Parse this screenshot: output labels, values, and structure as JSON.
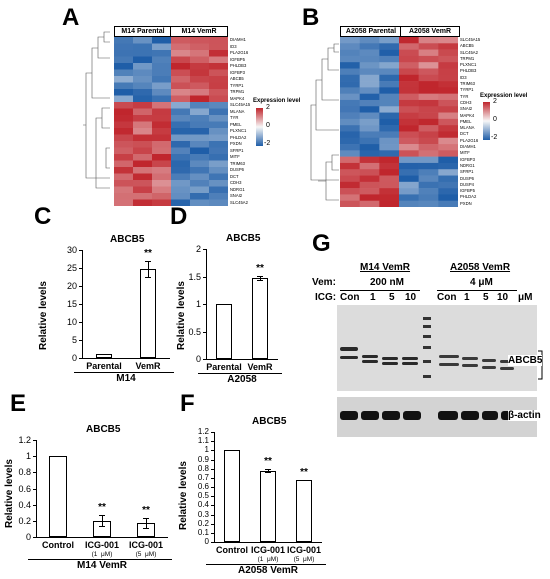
{
  "panels": {
    "A": "A",
    "B": "B",
    "C": "C",
    "D": "D",
    "E": "E",
    "F": "F",
    "G": "G"
  },
  "heatmap_a": {
    "groups": [
      "M14 Parental",
      "M14 VemR"
    ],
    "genes": [
      "DIAMH1",
      "ID3",
      "PLA2G16",
      "IGFBP5",
      "PHLDB3",
      "IGFBP3",
      "ABCB5",
      "TYRP1",
      "TRPM1",
      "MAPK4",
      "SLC45A15",
      "MLANA",
      "TYR",
      "PMEL",
      "PLXNC1",
      "PHLDA2",
      "PXDN",
      "SFRP1",
      "MITF",
      "TRIM63",
      "DUSP6",
      "DCT",
      "CDH3",
      "NDRG1",
      "SNAI2",
      "SLC45A2"
    ],
    "legend_title": "Expression level",
    "legend_ticks": [
      "2",
      "0",
      "-2"
    ]
  },
  "heatmap_b": {
    "groups": [
      "A2058  Parental",
      "A2058  VemR"
    ],
    "genes": [
      "SLC45A15",
      "ABCB5",
      "SLC45A2",
      "TRPM1",
      "PLXNC1",
      "PHLDB3",
      "ID3",
      "TRIM63",
      "TYRP1",
      "TYR",
      "CDH3",
      "SNAI2",
      "MAPK4",
      "PMEL",
      "MLANA",
      "DCT",
      "PLA2G16",
      "DIAMH1",
      "MITF",
      "IGFBP3",
      "NDRG1",
      "SFRP1",
      "DUSP6",
      "DUSP4",
      "IGFBP5",
      "PHLDA2",
      "PXDN"
    ],
    "legend_title": "Expression level",
    "legend_ticks": [
      "2",
      "0",
      "-2"
    ]
  },
  "colors": {
    "high": "#c0262d",
    "mid": "#f7f7f7",
    "low": "#1f5ea8"
  },
  "chart_data": [
    {
      "panel": "C",
      "type": "bar",
      "title": "ABCB5",
      "ylabel": "Relative levels",
      "xgroup": "M14",
      "categories": [
        "Parental",
        "VemR"
      ],
      "values": [
        1,
        24.8
      ],
      "errors": [
        0,
        2.2
      ],
      "significance": [
        "",
        "**"
      ],
      "ylim": [
        0,
        30
      ],
      "yticks": [
        "0",
        "5",
        "10",
        "15",
        "20",
        "25",
        "30"
      ]
    },
    {
      "panel": "D",
      "type": "bar",
      "title": "ABCB5",
      "ylabel": "Relative levels",
      "xgroup": "A2058",
      "categories": [
        "Parental",
        "VemR"
      ],
      "values": [
        1,
        1.47
      ],
      "errors": [
        0,
        0.04
      ],
      "significance": [
        "",
        "**"
      ],
      "ylim": [
        0,
        2
      ],
      "yticks": [
        "0",
        "0.5",
        "1",
        "1.5",
        "2"
      ]
    },
    {
      "panel": "E",
      "type": "bar",
      "title": "ABCB5",
      "ylabel": "Relative levels",
      "xgroup": "M14 VemR",
      "categories": [
        "Control",
        "ICG-001\n(1  μM)",
        "ICG-001\n(5  μM)"
      ],
      "values": [
        1,
        0.2,
        0.17
      ],
      "errors": [
        0,
        0.07,
        0.06
      ],
      "significance": [
        "",
        "**",
        "**"
      ],
      "ylim": [
        0,
        1.2
      ],
      "yticks": [
        "0",
        "0.2",
        "0.4",
        "0.6",
        "0.8",
        "1",
        "1.2"
      ]
    },
    {
      "panel": "F",
      "type": "bar",
      "title": "ABCB5",
      "ylabel": "Relative levels",
      "xgroup": "A2058 VemR",
      "categories": [
        "Control",
        "ICG-001\n(1  μM)",
        "ICG-001\n(5  μM)"
      ],
      "values": [
        1,
        0.78,
        0.68
      ],
      "errors": [
        0,
        0.02,
        0.0
      ],
      "significance": [
        "",
        "**",
        "**"
      ],
      "ylim": [
        0,
        1.2
      ],
      "yticks": [
        "0",
        "0.1",
        "0.2",
        "0.3",
        "0.4",
        "0.5",
        "0.6",
        "0.7",
        "0.8",
        "0.9",
        "1",
        "1.1",
        "1.2"
      ]
    }
  ],
  "western_blot": {
    "group1": "M14 VemR",
    "group2": "A2058 VemR",
    "vem_label": "Vem:",
    "vem1": "200 nM",
    "vem2": "4 μM",
    "icg_label": "ICG:",
    "icg1": [
      "Con",
      "1",
      "5",
      "10"
    ],
    "icg2": [
      "Con",
      "1",
      "5",
      "10"
    ],
    "unit": "μM",
    "band1": "ABCB5",
    "band2": "β-actin"
  }
}
